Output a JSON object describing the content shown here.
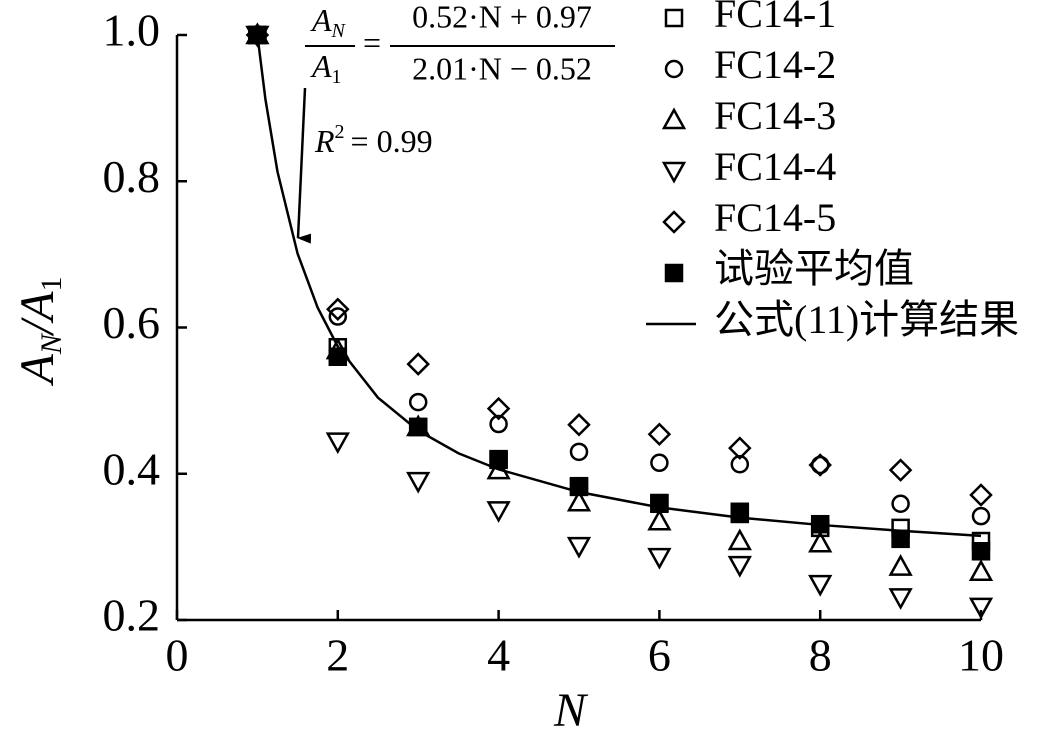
{
  "chart_data": {
    "type": "scatter",
    "x_label": "N",
    "y_label_parts": [
      "A",
      "N",
      "/A",
      "1"
    ],
    "annotations": {
      "fit_lhs_num": "A",
      "fit_lhs_num_sub": "N",
      "fit_lhs_den": "A",
      "fit_lhs_den_sub": "1",
      "fit_eq": "=",
      "fit_rhs_num": "0.52·N + 0.97",
      "fit_rhs_den": "2.01·N − 0.52",
      "r2_label": "R",
      "r2_sup": "2",
      "r2_value": "= 0.99"
    },
    "x": [
      1,
      2,
      3,
      4,
      5,
      6,
      7,
      8,
      9,
      10
    ],
    "series": [
      {
        "name": "FC14-1",
        "marker": "square-open",
        "color": "#000000",
        "values": [
          1.0,
          0.573,
          0.464,
          0.42,
          0.383,
          0.359,
          0.345,
          0.326,
          0.326,
          0.308
        ]
      },
      {
        "name": "FC14-2",
        "marker": "circle-open",
        "color": "#000000",
        "values": [
          1.0,
          0.615,
          0.498,
          0.468,
          0.43,
          0.415,
          0.413,
          0.412,
          0.359,
          0.342
        ]
      },
      {
        "name": "FC14-3",
        "marker": "triangle-up-open",
        "color": "#000000",
        "values": [
          1.0,
          0.569,
          0.464,
          0.405,
          0.361,
          0.335,
          0.308,
          0.305,
          0.273,
          0.266
        ]
      },
      {
        "name": "FC14-4",
        "marker": "triangle-down-open",
        "color": "#000000",
        "values": [
          1.0,
          0.444,
          0.39,
          0.35,
          0.301,
          0.286,
          0.275,
          0.249,
          0.231,
          0.218
        ]
      },
      {
        "name": "FC14-5",
        "marker": "diamond-open",
        "color": "#000000",
        "values": [
          1.0,
          0.625,
          0.55,
          0.489,
          0.467,
          0.454,
          0.435,
          0.412,
          0.405,
          0.371
        ]
      },
      {
        "name": "试验平均值",
        "marker": "square-filled",
        "color": "#000000",
        "values": [
          1.0,
          0.56,
          0.464,
          0.419,
          0.382,
          0.36,
          0.348,
          0.331,
          0.311,
          0.294
        ]
      },
      {
        "name": "公式(11)计算结果",
        "marker": "line",
        "color": "#000000",
        "x": [
          1,
          1.1,
          1.25,
          1.5,
          1.75,
          2,
          2.5,
          3,
          3.5,
          4,
          5,
          6,
          7,
          8,
          9,
          10
        ],
        "values": [
          1.0,
          0.912,
          0.813,
          0.701,
          0.627,
          0.574,
          0.504,
          0.459,
          0.428,
          0.406,
          0.375,
          0.354,
          0.34,
          0.33,
          0.322,
          0.315
        ]
      }
    ],
    "xlim": [
      0,
      10
    ],
    "ylim": [
      0.2,
      1.0
    ],
    "xticks": [
      0,
      2,
      4,
      6,
      8,
      10
    ],
    "yticks": [
      0.2,
      0.4,
      0.6,
      0.8,
      {
        "value": 1.0,
        "label": "1.0"
      }
    ],
    "grid": false,
    "legend": "top-right"
  }
}
